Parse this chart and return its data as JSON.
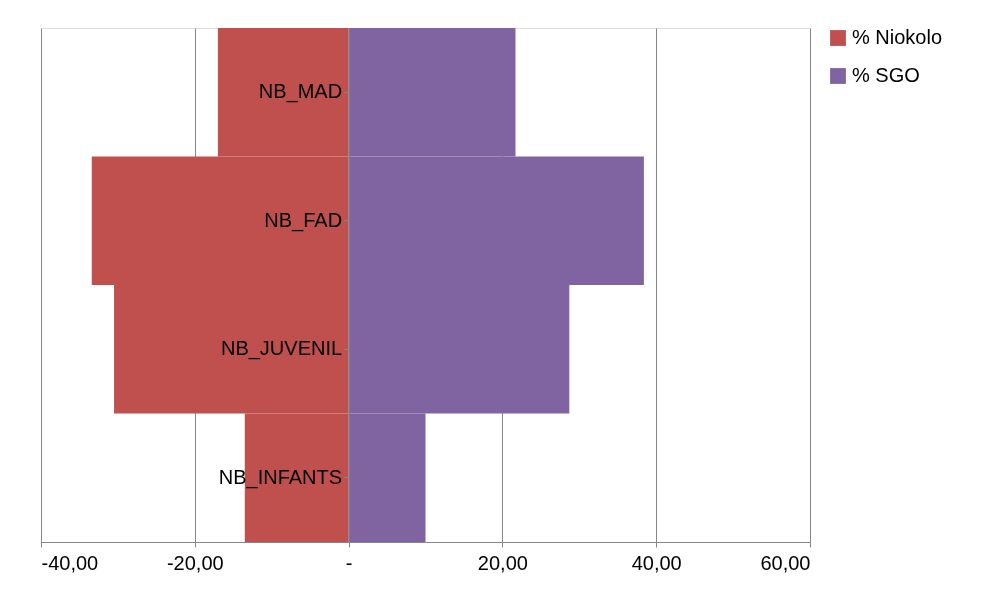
{
  "chart_data": {
    "type": "bar",
    "orientation": "horizontal",
    "categories": [
      "NB_MAD",
      "NB_FAD",
      "NB_JUVENIL",
      "NB_INFANTS"
    ],
    "series": [
      {
        "name": "% Niokolo",
        "color": "#c0504d",
        "values": [
          -17.0,
          -33.4,
          -30.5,
          -13.5
        ]
      },
      {
        "name": "% SGO",
        "color": "#8064a2",
        "values": [
          21.7,
          38.4,
          28.7,
          10.0
        ]
      }
    ],
    "xlim": [
      -40,
      60
    ],
    "xticks": [
      {
        "value": -40,
        "label": "-40,00"
      },
      {
        "value": -20,
        "label": "-20,00"
      },
      {
        "value": 0,
        "label": "-"
      },
      {
        "value": 20,
        "label": "20,00"
      },
      {
        "value": 40,
        "label": "40,00"
      },
      {
        "value": 60,
        "label": "60,00"
      }
    ],
    "grid": "x",
    "legend": "right",
    "stacked": true
  }
}
